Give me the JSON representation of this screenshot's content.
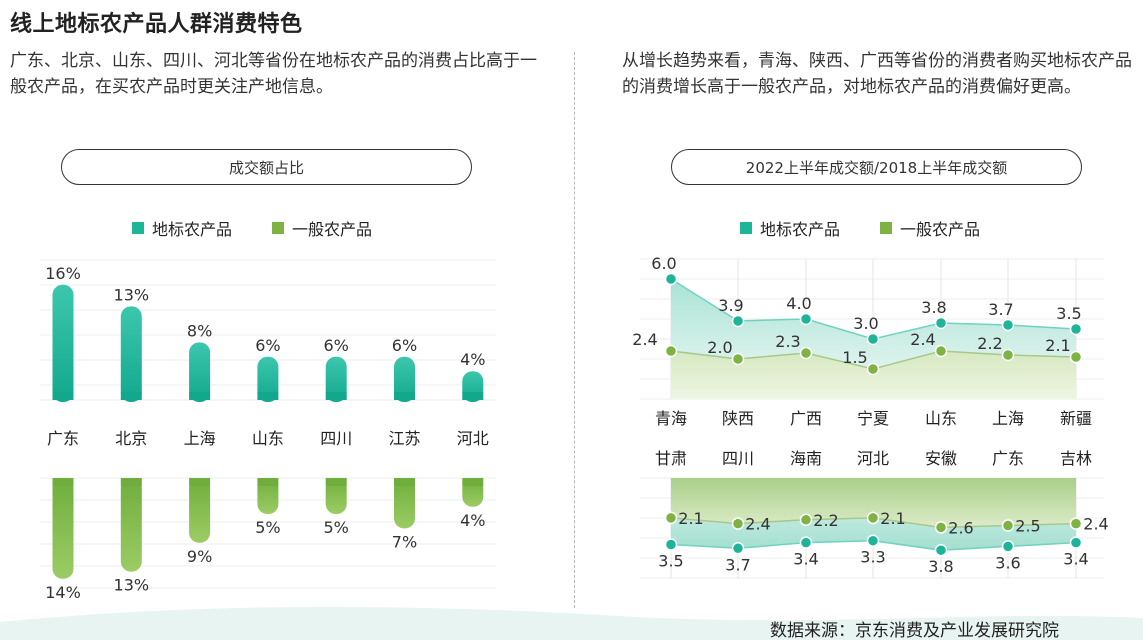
{
  "title": "线上地标农产品人群消费特色",
  "left_text": "广东、北京、山东、四川、河北等省份在地标农产品的消费占比高于一般农产品，在买农产品时更关注产地信息。",
  "right_text": "从增长趋势来看，青海、陕西、广西等省份的消费者购买地标农产品的消费增长高于一般农产品，对地标农产品的消费偏好更高。",
  "source": "数据来源：京东消费及产业发展研究院",
  "colors": {
    "teal": "#1db59a",
    "green": "#7cb342",
    "teal_fill": "#bfe9df",
    "green_fill": "#dcebc8"
  },
  "chart_data": [
    {
      "type": "bar",
      "title": "成交额占比",
      "legend": [
        "地标农产品",
        "一般农产品"
      ],
      "categories": [
        "广东",
        "北京",
        "上海",
        "山东",
        "四川",
        "江苏",
        "河北"
      ],
      "series": [
        {
          "name": "地标农产品",
          "values": [
            16,
            13,
            8,
            6,
            6,
            6,
            4
          ],
          "labels": [
            "16%",
            "13%",
            "8%",
            "6%",
            "6%",
            "6%",
            "4%"
          ]
        },
        {
          "name": "一般农产品",
          "values": [
            14,
            13,
            9,
            5,
            5,
            7,
            4
          ],
          "labels": [
            "14%",
            "13%",
            "9%",
            "5%",
            "5%",
            "7%",
            "4%"
          ]
        }
      ]
    },
    {
      "type": "area",
      "title": "2022上半年成交额/2018上半年成交额",
      "legend": [
        "地标农产品",
        "一般农产品"
      ],
      "panels": [
        {
          "categories": [
            "青海",
            "陕西",
            "广西",
            "宁夏",
            "山东",
            "上海",
            "新疆"
          ],
          "series": [
            {
              "name": "地标农产品",
              "values": [
                6.0,
                3.9,
                4.0,
                3.0,
                3.8,
                3.7,
                3.5
              ]
            },
            {
              "name": "一般农产品",
              "values": [
                2.4,
                2.0,
                2.3,
                1.5,
                2.4,
                2.2,
                2.1
              ]
            }
          ]
        },
        {
          "categories": [
            "甘肃",
            "四川",
            "海南",
            "河北",
            "安徽",
            "广东",
            "吉林"
          ],
          "series": [
            {
              "name": "地标农产品",
              "values": [
                3.5,
                3.7,
                3.4,
                3.3,
                3.8,
                3.6,
                3.4
              ]
            },
            {
              "name": "一般农产品",
              "values": [
                2.1,
                2.4,
                2.2,
                2.1,
                2.6,
                2.5,
                2.4
              ]
            }
          ]
        }
      ]
    }
  ]
}
